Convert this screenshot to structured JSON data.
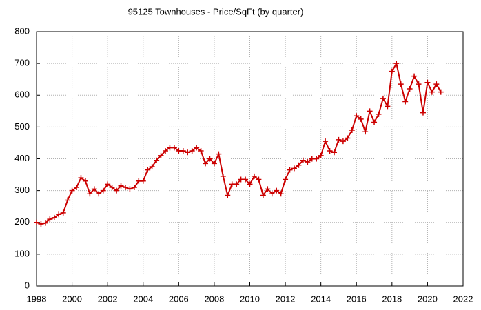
{
  "chart_data": {
    "type": "line",
    "title": "95125 Townhouses - Price/SqFt (by quarter)",
    "x": [
      1998,
      1998.25,
      1998.5,
      1998.75,
      1999,
      1999.25,
      1999.5,
      1999.75,
      2000,
      2000.25,
      2000.5,
      2000.75,
      2001,
      2001.25,
      2001.5,
      2001.75,
      2002,
      2002.25,
      2002.5,
      2002.75,
      2003,
      2003.25,
      2003.5,
      2003.75,
      2004,
      2004.25,
      2004.5,
      2004.75,
      2005,
      2005.25,
      2005.5,
      2005.75,
      2006,
      2006.25,
      2006.5,
      2006.75,
      2007,
      2007.25,
      2007.5,
      2007.75,
      2008,
      2008.25,
      2008.5,
      2008.75,
      2009,
      2009.25,
      2009.5,
      2009.75,
      2010,
      2010.25,
      2010.5,
      2010.75,
      2011,
      2011.25,
      2011.5,
      2011.75,
      2012,
      2012.25,
      2012.5,
      2012.75,
      2013,
      2013.25,
      2013.5,
      2013.75,
      2014,
      2014.25,
      2014.5,
      2014.75,
      2015,
      2015.25,
      2015.5,
      2015.75,
      2016,
      2016.25,
      2016.5,
      2016.75,
      2017,
      2017.25,
      2017.5,
      2017.75,
      2018,
      2018.25,
      2018.5,
      2018.75,
      2019,
      2019.25,
      2019.5,
      2019.75,
      2020,
      2020.25,
      2020.5,
      2020.75
    ],
    "series": [
      {
        "name": "Price/SqFt",
        "color": "#cc0000",
        "values": [
          200,
          195,
          198,
          210,
          215,
          225,
          230,
          270,
          300,
          310,
          340,
          330,
          290,
          305,
          290,
          300,
          320,
          310,
          300,
          315,
          310,
          305,
          310,
          330,
          330,
          365,
          375,
          395,
          410,
          425,
          435,
          435,
          425,
          425,
          420,
          425,
          435,
          425,
          385,
          400,
          385,
          415,
          345,
          285,
          320,
          320,
          335,
          335,
          320,
          345,
          335,
          285,
          305,
          290,
          300,
          290,
          335,
          365,
          370,
          380,
          395,
          390,
          400,
          400,
          410,
          455,
          425,
          420,
          460,
          455,
          465,
          490,
          535,
          525,
          485,
          550,
          515,
          540,
          590,
          565,
          675,
          700,
          635,
          580,
          620,
          660,
          635,
          545,
          640,
          610,
          635,
          610
        ]
      }
    ],
    "xlim": [
      1998,
      2022
    ],
    "xticks": [
      1998,
      2000,
      2002,
      2004,
      2006,
      2008,
      2010,
      2012,
      2014,
      2016,
      2018,
      2020,
      2022
    ],
    "ylim": [
      0,
      800
    ],
    "yticks": [
      0,
      100,
      200,
      300,
      400,
      500,
      600,
      700,
      800
    ],
    "grid": true
  }
}
